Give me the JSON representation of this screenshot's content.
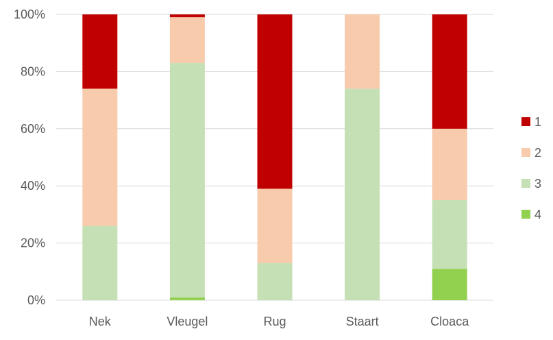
{
  "chart_data": {
    "type": "bar",
    "stacked": true,
    "percent": true,
    "categories": [
      "Nek",
      "Vleugel",
      "Rug",
      "Staart",
      "Cloaca"
    ],
    "series": [
      {
        "name": "4",
        "color": "#92D050",
        "values": [
          0,
          1,
          0,
          0,
          11
        ]
      },
      {
        "name": "3",
        "color": "#C5E0B4",
        "values": [
          26,
          82,
          13,
          74,
          24
        ]
      },
      {
        "name": "2",
        "color": "#F8CBAD",
        "values": [
          48,
          16,
          26,
          26,
          25
        ]
      },
      {
        "name": "1",
        "color": "#C00000",
        "values": [
          26,
          1,
          61,
          0,
          40
        ]
      }
    ],
    "legend_order": [
      "1",
      "2",
      "3",
      "4"
    ],
    "yticks": [
      "0%",
      "20%",
      "40%",
      "60%",
      "80%",
      "100%"
    ],
    "ylim": [
      0,
      100
    ],
    "grid": true,
    "legend_position": "right",
    "gridline_color": "#D9D9D9"
  }
}
